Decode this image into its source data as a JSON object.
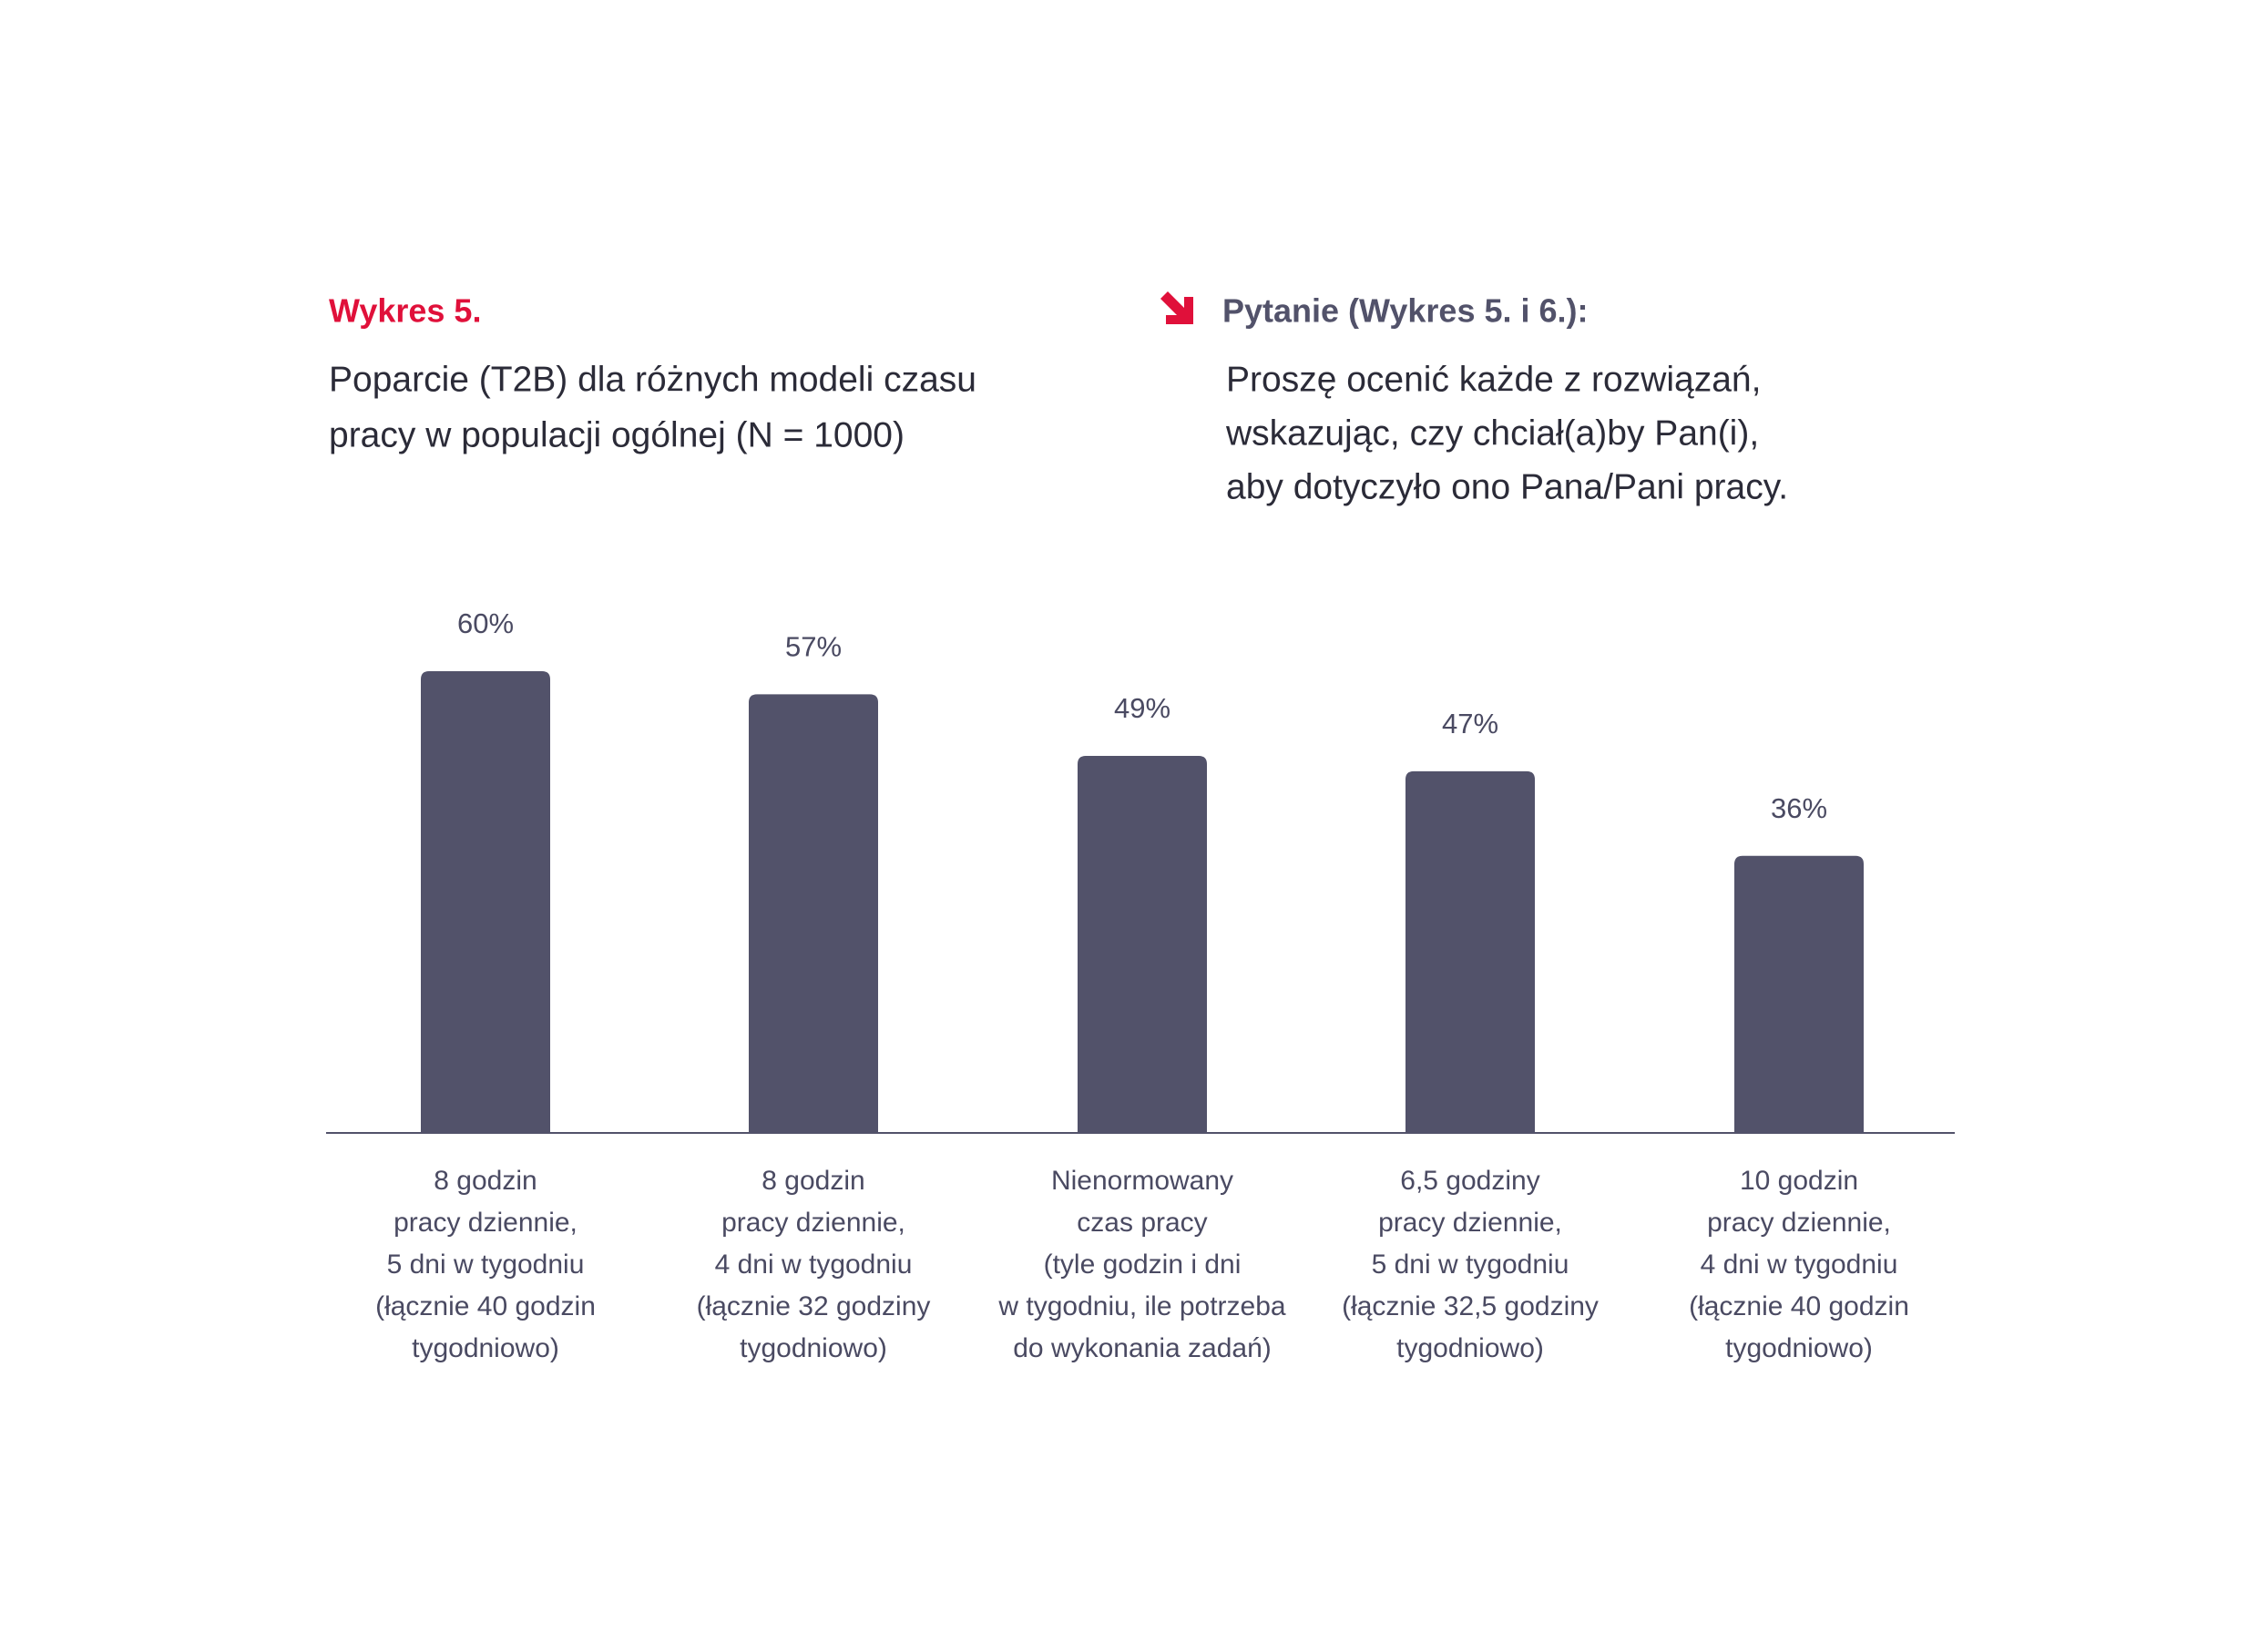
{
  "chart_data": {
    "type": "bar",
    "title": "Wykres 5.",
    "subtitle": [
      "Poparcie (T2B) dla różnych modeli czasu",
      "pracy w populacji ogólnej (N = 1000)"
    ],
    "question_title": "Pytanie (Wykres 5. i 6.):",
    "question": [
      "Proszę ocenić każde z rozwiązań,",
      "wskazując, czy chciał(a)by Pan(i),",
      "aby dotyczyło ono Pana/Pani pracy."
    ],
    "categories": [
      [
        "8 godzin",
        "pracy dziennie,",
        "5 dni w tygodniu",
        "(łącznie 40 godzin",
        "tygodniowo)"
      ],
      [
        "8 godzin",
        "pracy dziennie,",
        "4 dni w tygodniu",
        "(łącznie 32 godziny",
        "tygodniowo)"
      ],
      [
        "Nienormowany",
        "czas pracy",
        "(tyle godzin i dni",
        "w tygodniu, ile potrzeba",
        "do wykonania zadań)"
      ],
      [
        "6,5 godziny",
        "pracy dziennie,",
        "5 dni w tygodniu",
        "(łącznie 32,5 godziny",
        "tygodniowo)"
      ],
      [
        "10 godzin",
        "pracy dziennie,",
        "4 dni w tygodniu",
        "(łącznie 40 godzin",
        "tygodniowo)"
      ]
    ],
    "values": [
      60,
      57,
      49,
      47,
      36
    ],
    "value_labels": [
      "60%",
      "57%",
      "49%",
      "47%",
      "36%"
    ],
    "color": "#52526a",
    "accent_color": "#e0103a",
    "ylim": [
      0,
      100
    ]
  }
}
